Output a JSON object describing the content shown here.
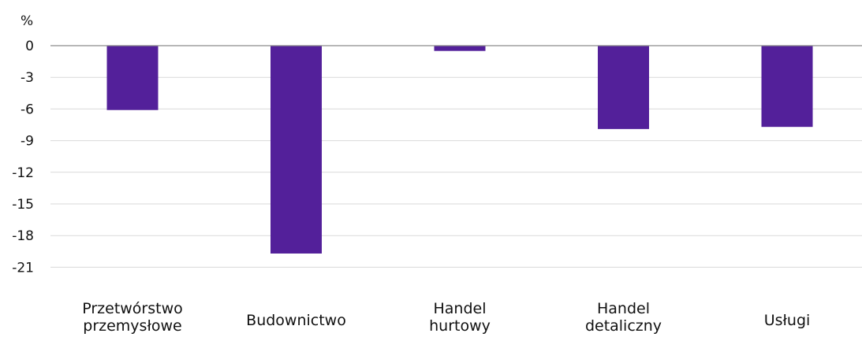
{
  "chart_data": {
    "type": "bar",
    "unit_label": "%",
    "categories": [
      [
        "Przetwórstwo",
        "przemysłowe"
      ],
      [
        "Budownictwo"
      ],
      [
        "Handel",
        "hurtowy"
      ],
      [
        "Handel",
        "detaliczny"
      ],
      [
        "Usługi"
      ]
    ],
    "values": [
      -6.1,
      -19.7,
      -0.5,
      -7.9,
      -7.7
    ],
    "yticks": [
      "0",
      "-3",
      "-6",
      "-9",
      "-12",
      "-15",
      "-18",
      "-21"
    ],
    "ylim": [
      -21,
      0
    ],
    "grid": true,
    "bar_color": "#53209a",
    "grid_color": "#d9d9d9",
    "zero_line_color": "#8c8c8c"
  }
}
